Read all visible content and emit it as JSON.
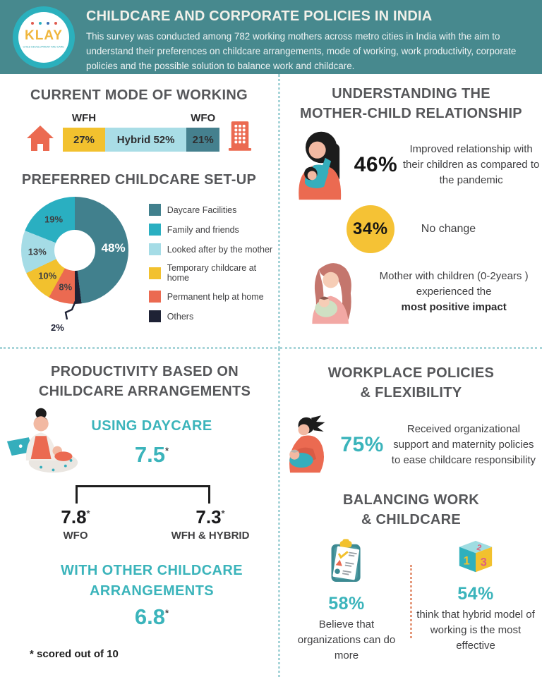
{
  "header": {
    "title": "CHILDCARE AND CORPORATE POLICIES IN INDIA",
    "subtitle": "This survey was conducted among 782 working mothers across metro cities in India with the aim to understand their preferences on childcare arrangements, mode of working, work productivity, corporate policies and the possible solution to balance work and childcare.",
    "logo": {
      "name": "KLAY",
      "tagline": "CHILD DEVELOPMENT AND CARE"
    },
    "colors": {
      "background": "#47898e",
      "title": "#f2f1ea"
    }
  },
  "sections": {
    "mode_of_working": {
      "heading": "CURRENT MODE OF WORKING"
    },
    "childcare_setup": {
      "heading": "PREFERRED CHILDCARE SET-UP",
      "callout_label": "2%"
    },
    "relationship": {
      "heading_line1": "UNDERSTANDING THE",
      "heading_line2": "MOTHER-CHILD RELATIONSHIP",
      "stat_improved_value": "46%",
      "stat_improved_text": "Improved relationship with their children as compared to the pandemic",
      "stat_nochange_value": "34%",
      "stat_nochange_text": "No change",
      "stat_mom_line1": "Mother with children (0-2years )",
      "stat_mom_line2": "experienced the",
      "stat_mom_bold": "most positive impact"
    },
    "productivity": {
      "heading_line1": "PRODUCTIVITY BASED ON",
      "heading_line2": "CHILDCARE ARRANGEMENTS",
      "daycare_label": "USING DAYCARE",
      "daycare_score": "7.5",
      "wfo_score": "7.8",
      "wfo_label": "WFO",
      "wfh_score": "7.3",
      "wfh_label": "WFH & HYBRID",
      "other_label_line1": "WITH OTHER CHILDCARE",
      "other_label_line2": "ARRANGEMENTS",
      "other_score": "6.8",
      "asterisk": "*",
      "footnote": "* scored out of 10"
    },
    "workplace": {
      "heading_line1": "WORKPLACE POLICIES",
      "heading_line2": "& FLEXIBILITY",
      "stat_value": "75%",
      "stat_text": "Received organizational support and maternity policies to ease childcare responsibility"
    },
    "balancing": {
      "heading_line1": "BALANCING WORK",
      "heading_line2": "& CHILDCARE",
      "left_value": "58%",
      "left_text": "Believe that organizations can do more",
      "right_value": "54%",
      "right_text": "think that hybrid model of working is the most effective"
    }
  },
  "chart_data": [
    {
      "type": "bar",
      "subtype": "horizontal-stacked",
      "title": "CURRENT MODE OF WORKING",
      "categories": [
        "WFH",
        "Hybrid",
        "WFO"
      ],
      "values": [
        27,
        52,
        21
      ],
      "unit": "%",
      "colors": [
        "#f2c12e",
        "#a9dde6",
        "#45808e"
      ],
      "inline_labels": [
        "27%",
        "Hybrid 52%",
        "21%"
      ],
      "top_labels": [
        "WFH",
        "",
        "WFO"
      ]
    },
    {
      "type": "pie",
      "subtype": "donut",
      "title": "PREFERRED CHILDCARE SET-UP",
      "segments": [
        {
          "label": "Daycare Facilities",
          "value": 48,
          "color": "#41808d",
          "text_color": "#ffffff"
        },
        {
          "label": "Family and friends",
          "value": 19,
          "color": "#2aafc1",
          "text_color": "#3f3f41"
        },
        {
          "label": "Looked after by the mother",
          "value": 13,
          "color": "#a5dce6",
          "text_color": "#3f3f41"
        },
        {
          "label": "Temporary childcare at home",
          "value": 10,
          "color": "#f2c12e",
          "text_color": "#3f3f41"
        },
        {
          "label": "Permanent help at home",
          "value": 8,
          "color": "#eb6a51",
          "text_color": "#3f3f41"
        },
        {
          "label": "Others",
          "value": 2,
          "color": "#1e2235",
          "text_color": "#3f3f41",
          "label_outside": true
        }
      ],
      "draw_order": [
        0,
        5,
        4,
        3,
        2,
        1
      ],
      "start": "top",
      "direction": "clockwise",
      "legend_position": "right"
    }
  ]
}
